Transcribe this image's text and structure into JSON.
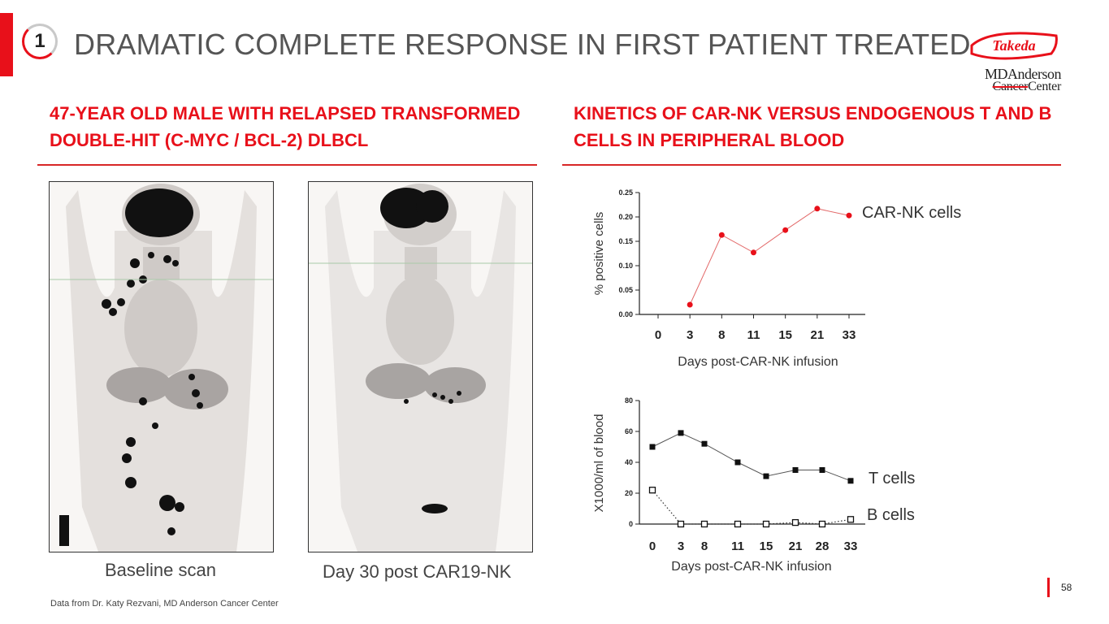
{
  "header": {
    "section_number": "1",
    "title": "DRAMATIC COMPLETE RESPONSE IN FIRST PATIENT TREATED",
    "logo_takeda": "Takeda",
    "logo_mda_line1": "MDAnderson",
    "logo_mda_line2a": "Cancer",
    "logo_mda_line2b": "Center"
  },
  "left": {
    "heading_line1": "47-YEAR OLD MALE WITH RELAPSED TRANSFORMED",
    "heading_line2": "DOUBLE-HIT (C-MYC / BCL-2) DLBCL",
    "scan1_caption": "Baseline scan",
    "scan2_caption": "Day 30 post CAR19-NK"
  },
  "right": {
    "heading_line1": "KINETICS OF CAR-NK VERSUS ENDOGENOUS T AND B",
    "heading_line2": "CELLS IN PERIPHERAL BLOOD"
  },
  "footer": {
    "source": "Data from Dr. Katy Rezvani, MD Anderson Cancer Center",
    "page": "58"
  },
  "colors": {
    "accent": "#e8101a",
    "car_nk_line": "#e36a6a",
    "black": "#111111"
  },
  "chart_data": [
    {
      "type": "line",
      "xlabel": "Days post-CAR-NK infusion",
      "ylabel": "% positive cells",
      "ylim": [
        0,
        0.25
      ],
      "yticks": [
        "0.00",
        "0.05",
        "0.10",
        "0.15",
        "0.20",
        "0.25"
      ],
      "categories": [
        "0",
        "3",
        "8",
        "11",
        "15",
        "21",
        "33"
      ],
      "series": [
        {
          "name": "CAR-NK cells",
          "x": [
            "3",
            "8",
            "11",
            "15",
            "21",
            "33"
          ],
          "values": [
            0.02,
            0.163,
            0.127,
            0.173,
            0.217,
            0.203
          ]
        }
      ]
    },
    {
      "type": "line",
      "xlabel": "Days post-CAR-NK infusion",
      "ylabel": "X1000/ml of blood",
      "ylim": [
        0,
        80
      ],
      "yticks": [
        "0",
        "20",
        "40",
        "60",
        "80"
      ],
      "categories": [
        "0",
        "3",
        "8",
        "11",
        "15",
        "21",
        "28",
        "33"
      ],
      "series": [
        {
          "name": "T cells",
          "values": [
            50,
            59,
            52,
            40,
            31,
            35,
            35,
            28
          ]
        },
        {
          "name": "B cells",
          "values": [
            22,
            0,
            0,
            0,
            0,
            1,
            0,
            3
          ]
        }
      ]
    }
  ]
}
